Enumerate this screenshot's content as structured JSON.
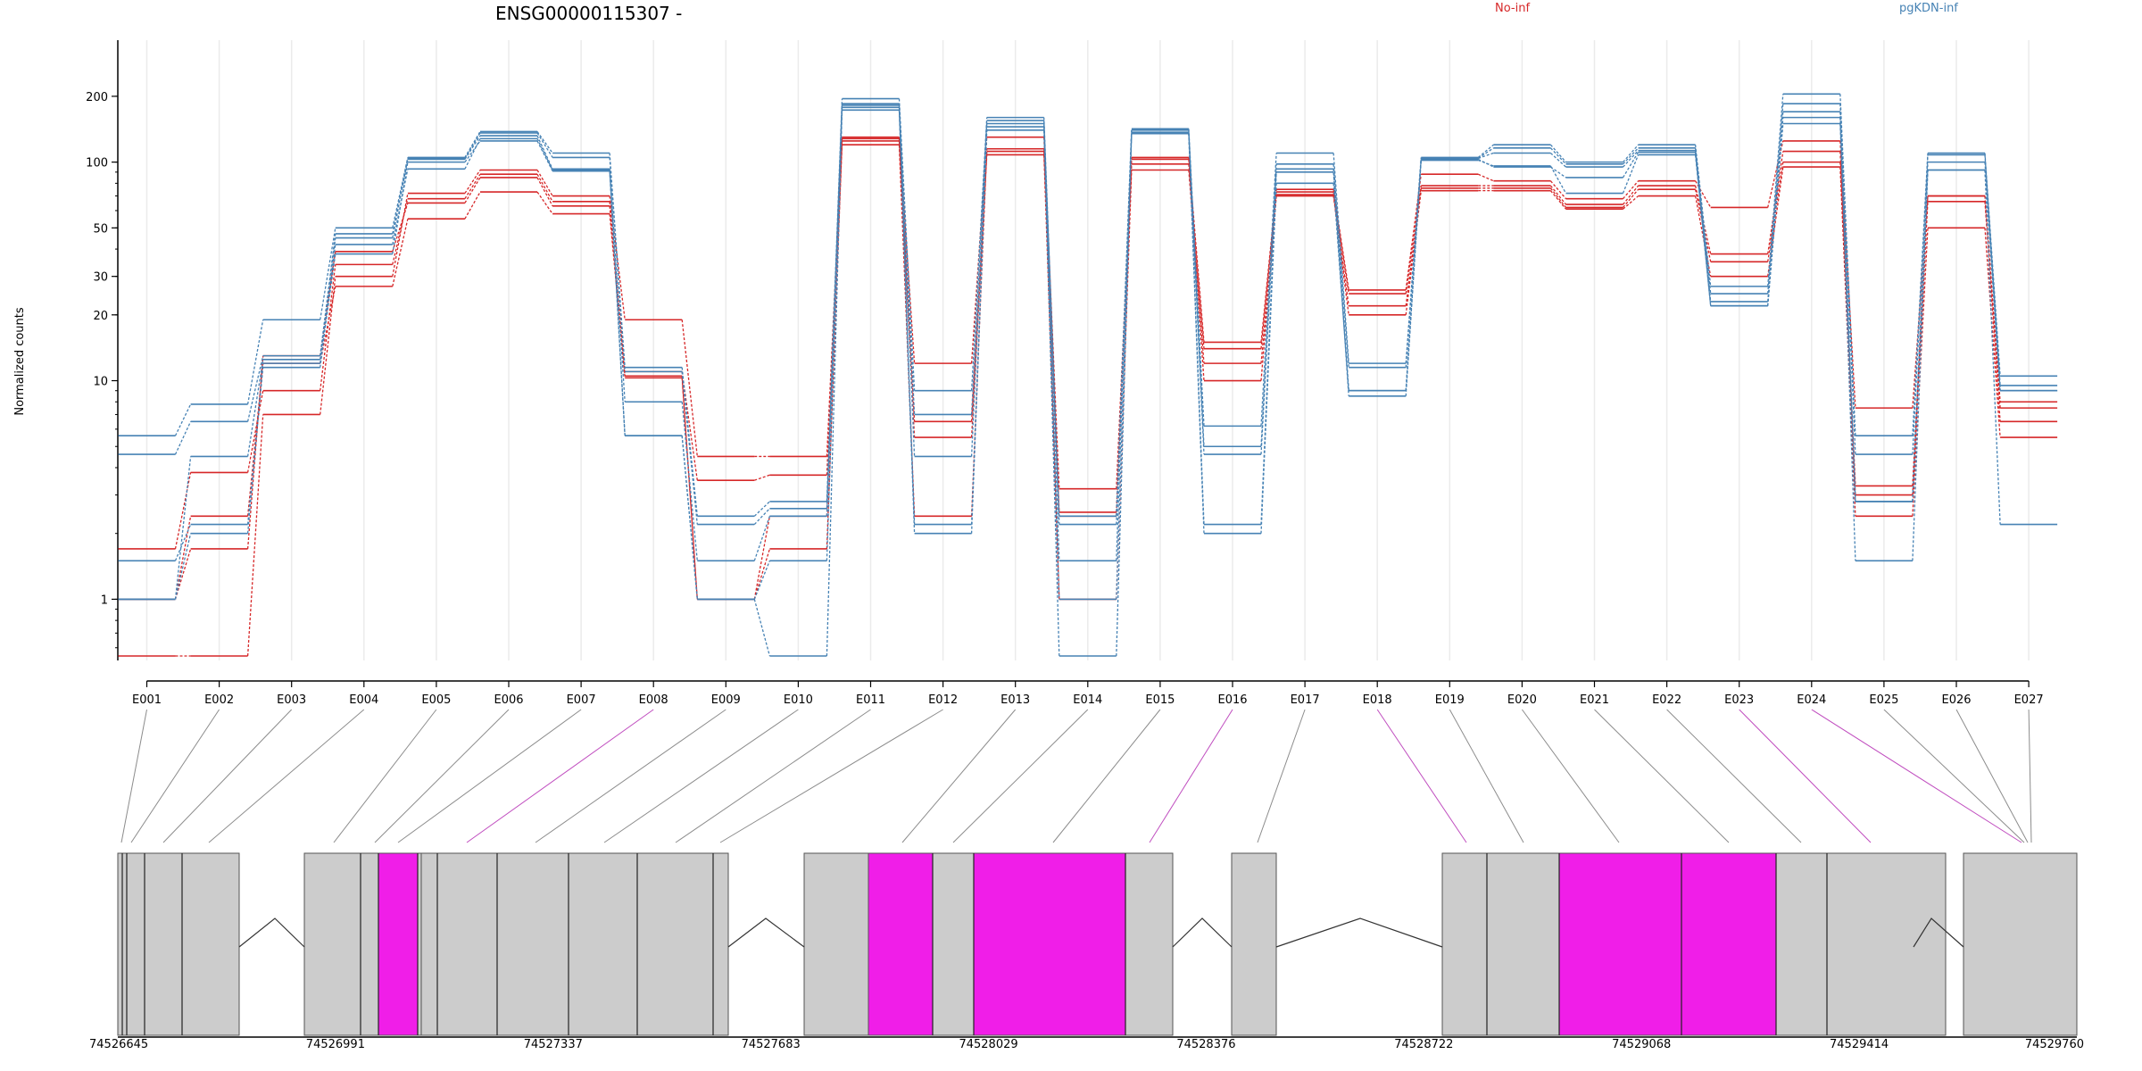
{
  "colors": {
    "series_no_inf": "#d62728",
    "series_pgkdn_inf": "#4682b4",
    "exon_default": "#cccccc",
    "exon_highlight": "#f01ee8",
    "connector_default": "#8c8c8c",
    "connector_highlight": "#c04dbf",
    "intron": "#333333",
    "grid": "#ebebeb"
  },
  "chart_data": {
    "type": "line",
    "title": "ENSG00000115307 -",
    "ylabel": "Normalized counts",
    "yscale": "log",
    "ylim": [
      0.55,
      260
    ],
    "yticks": [
      1,
      10,
      20,
      30,
      50,
      100,
      200
    ],
    "categories": [
      "E001",
      "E002",
      "E003",
      "E004",
      "E005",
      "E006",
      "E007",
      "E008",
      "E009",
      "E010",
      "E011",
      "E012",
      "E013",
      "E014",
      "E015",
      "E016",
      "E017",
      "E018",
      "E019",
      "E020",
      "E021",
      "E022",
      "E023",
      "E024",
      "E025",
      "E026",
      "E027"
    ],
    "legend": [
      {
        "name": "No-inf",
        "color": "#d62728"
      },
      {
        "name": "pgKDN-inf",
        "color": "#4682b4"
      }
    ],
    "series": [
      {
        "group": "No-inf",
        "values": [
          0.55,
          0.55,
          7,
          30,
          72,
          92,
          70,
          19,
          4.5,
          4.5,
          130,
          12,
          130,
          3.2,
          105,
          15,
          75,
          26,
          88,
          82,
          68,
          82,
          62,
          125,
          7.5,
          70,
          8
        ]
      },
      {
        "group": "No-inf",
        "values": [
          1.7,
          3.8,
          9,
          34,
          68,
          88,
          66,
          11,
          3.5,
          3.7,
          128,
          6.5,
          112,
          2.5,
          98,
          14,
          73,
          25,
          78,
          78,
          64,
          78,
          38,
          112,
          3.3,
          70,
          7.5
        ]
      },
      {
        "group": "No-inf",
        "values": [
          1.0,
          1.7,
          13,
          39,
          65,
          85,
          63,
          10.5,
          1.0,
          1.7,
          125,
          5.5,
          108,
          1.0,
          92,
          12,
          71,
          22,
          76,
          76,
          62,
          75,
          35,
          100,
          3.0,
          66,
          6.5
        ]
      },
      {
        "group": "No-inf",
        "values": [
          1.0,
          2.4,
          12,
          27,
          55,
          73,
          58,
          10.3,
          1.0,
          2.4,
          120,
          2.4,
          115,
          2.4,
          103,
          10,
          70,
          20,
          74,
          74,
          61,
          70,
          30,
          95,
          2.4,
          50,
          5.5
        ]
      },
      {
        "group": "pgKDN-inf",
        "values": [
          5.6,
          7.8,
          19,
          50,
          105,
          138,
          110,
          11.5,
          2.4,
          2.8,
          195,
          9,
          160,
          2.4,
          142,
          6.2,
          110,
          12,
          105,
          120,
          100,
          120,
          27,
          205,
          5.6,
          110,
          10.5
        ]
      },
      {
        "group": "pgKDN-inf",
        "values": [
          4.6,
          6.5,
          13,
          47,
          104,
          136,
          105,
          11,
          2.2,
          2.6,
          185,
          7,
          155,
          2.2,
          140,
          5,
          98,
          11.5,
          104,
          116,
          98,
          116,
          25,
          185,
          4.6,
          108,
          9.5
        ]
      },
      {
        "group": "pgKDN-inf",
        "values": [
          1.0,
          4.5,
          12.5,
          45,
          103,
          132,
          93,
          8,
          1.5,
          2.4,
          182,
          4.5,
          150,
          1.5,
          137,
          4.6,
          93,
          9,
          104,
          110,
          95,
          113,
          23,
          170,
          2.8,
          100,
          9
        ]
      },
      {
        "group": "pgKDN-inf",
        "values": [
          1.5,
          2.2,
          11.5,
          42,
          93,
          128,
          92,
          5.6,
          1.0,
          1.5,
          178,
          2.2,
          145,
          0.55,
          136,
          2.2,
          90,
          8.5,
          103,
          95,
          85,
          111,
          22,
          160,
          1.5,
          92,
          2.2
        ]
      },
      {
        "group": "pgKDN-inf",
        "values": [
          1.0,
          2.0,
          12,
          38,
          100,
          125,
          91,
          5.6,
          1.0,
          0.55,
          173,
          2.0,
          140,
          1.0,
          135,
          2.0,
          80,
          9,
          102,
          96,
          72,
          108,
          22,
          150,
          2.8,
          92,
          9
        ]
      }
    ]
  },
  "gene_model": {
    "coord_labels": [
      "74526645",
      "74526991",
      "74527337",
      "74527683",
      "74528029",
      "74528376",
      "74528722",
      "74529068",
      "74529414",
      "74529760"
    ],
    "exon_highlight": [
      false,
      false,
      false,
      false,
      false,
      false,
      false,
      true,
      false,
      false,
      false,
      false,
      false,
      false,
      false,
      true,
      false,
      true,
      false,
      false,
      false,
      false,
      true,
      true,
      false,
      false,
      false
    ]
  }
}
